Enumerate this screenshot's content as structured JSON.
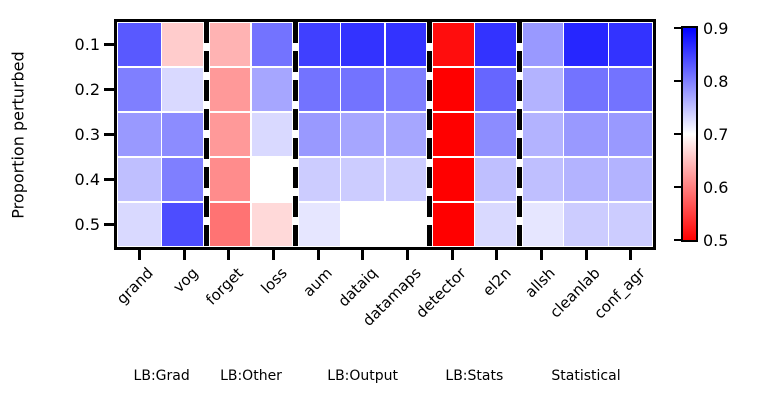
{
  "chart_data": {
    "type": "heatmap",
    "title": "",
    "ylabel": "Proportion perturbed",
    "xlabel": "",
    "rows": [
      "0.1",
      "0.2",
      "0.3",
      "0.4",
      "0.5"
    ],
    "columns": [
      "grand",
      "vog",
      "forget",
      "loss",
      "aum",
      "dataiq",
      "datamaps",
      "detector",
      "el2n",
      "allsh",
      "cleanlab",
      "conf_agr"
    ],
    "groups": [
      {
        "label": "LB:Grad",
        "start": 0,
        "end": 1
      },
      {
        "label": "LB:Other",
        "start": 2,
        "end": 3
      },
      {
        "label": "LB:Output",
        "start": 4,
        "end": 6
      },
      {
        "label": "LB:Stats",
        "start": 7,
        "end": 8
      },
      {
        "label": "Statistical",
        "start": 9,
        "end": 11
      }
    ],
    "values": [
      [
        0.83,
        0.66,
        0.64,
        0.81,
        0.85,
        0.86,
        0.86,
        0.51,
        0.86,
        0.78,
        0.87,
        0.86
      ],
      [
        0.8,
        0.73,
        0.62,
        0.77,
        0.81,
        0.81,
        0.8,
        0.5,
        0.82,
        0.76,
        0.81,
        0.81
      ],
      [
        0.78,
        0.79,
        0.62,
        0.73,
        0.78,
        0.77,
        0.77,
        0.5,
        0.79,
        0.76,
        0.78,
        0.78
      ],
      [
        0.75,
        0.8,
        0.61,
        0.7,
        0.74,
        0.74,
        0.74,
        0.5,
        0.75,
        0.75,
        0.76,
        0.76
      ],
      [
        0.73,
        0.84,
        0.59,
        0.67,
        0.72,
        0.7,
        0.7,
        0.5,
        0.73,
        0.72,
        0.74,
        0.74
      ]
    ],
    "colorbar": {
      "vmin": 0.5,
      "vmax": 0.9,
      "tick_labels": [
        "0.9",
        "0.8",
        "0.7",
        "0.6",
        "0.5"
      ],
      "cmap": "blue-white-red",
      "color_high": "#0000ff",
      "color_mid": "#ffffff",
      "color_low": "#ff0000"
    },
    "grid": true,
    "legend_position": "none",
    "separator_style": "thick-black-dashed-vertical"
  }
}
